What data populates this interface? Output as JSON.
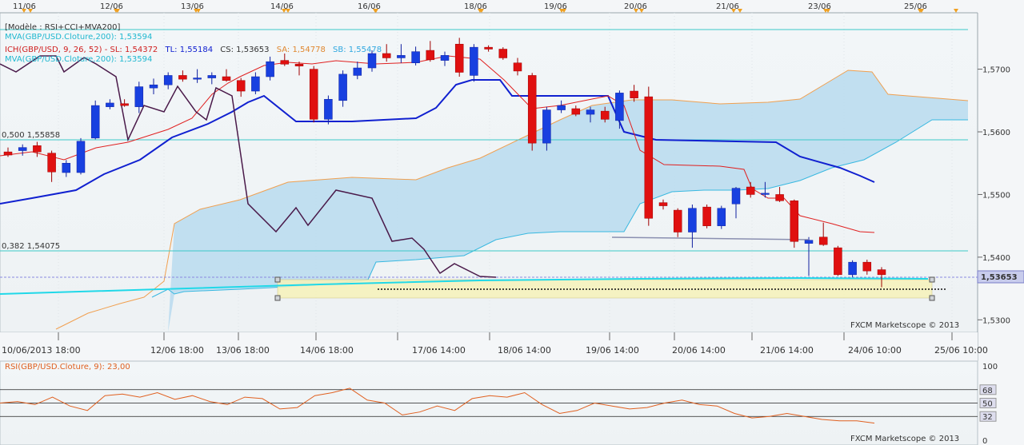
{
  "chart_data": {
    "type": "candlestick",
    "instrument": "GBP/USD",
    "title": "[Modèle : RSI+CCI+MVA200]",
    "watermark": "FXCM Marketscope © 2013",
    "indicators": {
      "mva200_top": "MVA(GBP/USD.Cloture,200): 1,53594",
      "ichimoku_prefix": "ICH(GBP/USD, 9, 26, 52) -  SL: 1,54372",
      "tl": "TL: 1,55184",
      "cs": "CS: 1,53653",
      "sa": "SA: 1,54778",
      "sb": "SB: 1,55478",
      "mva200_bottom": "MVA(GBP/USD.Cloture,200): 1,53594"
    },
    "fib_levels": [
      {
        "label": "0,500 1,55858",
        "value": 1.55858
      },
      {
        "label": "0,382 1,54075",
        "value": 1.54075
      }
    ],
    "current_price_label": "1,53653",
    "current_price": 1.53653,
    "top_axis_labels": [
      "11/06",
      "12/06",
      "13/06",
      "14/06",
      "16/06",
      "18/06",
      "19/06",
      "20/06",
      "21/06",
      "23/06",
      "25/06"
    ],
    "bottom_axis_labels": [
      "10/06/2013 18:00",
      "12/06 18:00",
      "13/06 18:00",
      "14/06 18:00",
      "17/06 14:00",
      "18/06 14:00",
      "19/06 14:00",
      "20/06 14:00",
      "21/06 14:00",
      "24/06 10:00",
      "25/06 10:00"
    ],
    "y_ticks": [
      "1,5300",
      "1,5400",
      "1,5500",
      "1,5600",
      "1,5700"
    ],
    "y_tick_values": [
      1.53,
      1.54,
      1.55,
      1.56,
      1.57
    ],
    "ylim": [
      1.528,
      1.579
    ],
    "rsi": {
      "label": "RSI(GBP/USD.Cloture, 9): 23,00",
      "levels": [
        "100",
        "68",
        "50",
        "32",
        "0"
      ],
      "values": [
        50,
        52,
        48,
        58,
        46,
        40,
        60,
        62,
        58,
        64,
        55,
        60,
        52,
        48,
        58,
        56,
        42,
        44,
        60,
        64,
        70,
        54,
        50,
        34,
        38,
        46,
        40,
        56,
        60,
        58,
        64,
        48,
        36,
        40,
        50,
        46,
        42,
        44,
        50,
        54,
        48,
        46,
        36,
        30,
        32,
        36,
        32,
        28,
        26,
        26,
        23
      ]
    },
    "candles": [
      {
        "o": 1.5568,
        "h": 1.5575,
        "l": 1.556,
        "c": 1.5563
      },
      {
        "o": 1.557,
        "h": 1.558,
        "l": 1.5562,
        "c": 1.5575
      },
      {
        "o": 1.5578,
        "h": 1.5584,
        "l": 1.556,
        "c": 1.5568
      },
      {
        "o": 1.5566,
        "h": 1.557,
        "l": 1.552,
        "c": 1.5536
      },
      {
        "o": 1.5535,
        "h": 1.5555,
        "l": 1.5528,
        "c": 1.555
      },
      {
        "o": 1.5535,
        "h": 1.559,
        "l": 1.5532,
        "c": 1.5585
      },
      {
        "o": 1.559,
        "h": 1.565,
        "l": 1.5588,
        "c": 1.5642
      },
      {
        "o": 1.564,
        "h": 1.5652,
        "l": 1.5636,
        "c": 1.5646
      },
      {
        "o": 1.5645,
        "h": 1.5652,
        "l": 1.564,
        "c": 1.5642
      },
      {
        "o": 1.564,
        "h": 1.568,
        "l": 1.563,
        "c": 1.5672
      },
      {
        "o": 1.567,
        "h": 1.5685,
        "l": 1.566,
        "c": 1.5675
      },
      {
        "o": 1.5675,
        "h": 1.5695,
        "l": 1.5668,
        "c": 1.569
      },
      {
        "o": 1.569,
        "h": 1.5698,
        "l": 1.568,
        "c": 1.5684
      },
      {
        "o": 1.5684,
        "h": 1.57,
        "l": 1.5678,
        "c": 1.5686
      },
      {
        "o": 1.5686,
        "h": 1.5695,
        "l": 1.5676,
        "c": 1.569
      },
      {
        "o": 1.5688,
        "h": 1.57,
        "l": 1.568,
        "c": 1.5682
      },
      {
        "o": 1.5682,
        "h": 1.5686,
        "l": 1.5656,
        "c": 1.5665
      },
      {
        "o": 1.5665,
        "h": 1.5695,
        "l": 1.566,
        "c": 1.5688
      },
      {
        "o": 1.5688,
        "h": 1.572,
        "l": 1.5682,
        "c": 1.5712
      },
      {
        "o": 1.5714,
        "h": 1.5725,
        "l": 1.5705,
        "c": 1.5708
      },
      {
        "o": 1.5708,
        "h": 1.5712,
        "l": 1.569,
        "c": 1.5705
      },
      {
        "o": 1.57,
        "h": 1.5705,
        "l": 1.5615,
        "c": 1.562
      },
      {
        "o": 1.562,
        "h": 1.5658,
        "l": 1.5612,
        "c": 1.5652
      },
      {
        "o": 1.565,
        "h": 1.5698,
        "l": 1.564,
        "c": 1.5692
      },
      {
        "o": 1.569,
        "h": 1.5712,
        "l": 1.5684,
        "c": 1.5702
      },
      {
        "o": 1.5702,
        "h": 1.573,
        "l": 1.5696,
        "c": 1.5725
      },
      {
        "o": 1.5725,
        "h": 1.574,
        "l": 1.5712,
        "c": 1.5718
      },
      {
        "o": 1.5718,
        "h": 1.574,
        "l": 1.571,
        "c": 1.5722
      },
      {
        "o": 1.571,
        "h": 1.5736,
        "l": 1.5706,
        "c": 1.5728
      },
      {
        "o": 1.573,
        "h": 1.5745,
        "l": 1.5712,
        "c": 1.5715
      },
      {
        "o": 1.5714,
        "h": 1.5728,
        "l": 1.5705,
        "c": 1.5722
      },
      {
        "o": 1.574,
        "h": 1.575,
        "l": 1.5688,
        "c": 1.5695
      },
      {
        "o": 1.569,
        "h": 1.574,
        "l": 1.568,
        "c": 1.5735
      },
      {
        "o": 1.5735,
        "h": 1.5738,
        "l": 1.5728,
        "c": 1.5732
      },
      {
        "o": 1.5732,
        "h": 1.5735,
        "l": 1.5715,
        "c": 1.5718
      },
      {
        "o": 1.571,
        "h": 1.5718,
        "l": 1.569,
        "c": 1.5697
      },
      {
        "o": 1.569,
        "h": 1.5694,
        "l": 1.557,
        "c": 1.5582
      },
      {
        "o": 1.5582,
        "h": 1.564,
        "l": 1.557,
        "c": 1.5635
      },
      {
        "o": 1.5635,
        "h": 1.565,
        "l": 1.563,
        "c": 1.5642
      },
      {
        "o": 1.5637,
        "h": 1.5642,
        "l": 1.5625,
        "c": 1.5628
      },
      {
        "o": 1.5628,
        "h": 1.564,
        "l": 1.5615,
        "c": 1.5635
      },
      {
        "o": 1.5633,
        "h": 1.564,
        "l": 1.5615,
        "c": 1.562
      },
      {
        "o": 1.5618,
        "h": 1.5666,
        "l": 1.5605,
        "c": 1.5662
      },
      {
        "o": 1.5665,
        "h": 1.5675,
        "l": 1.5648,
        "c": 1.5654
      },
      {
        "o": 1.5656,
        "h": 1.5672,
        "l": 1.545,
        "c": 1.5462
      },
      {
        "o": 1.5487,
        "h": 1.5492,
        "l": 1.5476,
        "c": 1.5482
      },
      {
        "o": 1.5475,
        "h": 1.5478,
        "l": 1.5432,
        "c": 1.544
      },
      {
        "o": 1.544,
        "h": 1.5484,
        "l": 1.5415,
        "c": 1.5478
      },
      {
        "o": 1.548,
        "h": 1.5484,
        "l": 1.5446,
        "c": 1.545
      },
      {
        "o": 1.545,
        "h": 1.5482,
        "l": 1.5445,
        "c": 1.5478
      },
      {
        "o": 1.5485,
        "h": 1.5512,
        "l": 1.5462,
        "c": 1.551
      },
      {
        "o": 1.5512,
        "h": 1.552,
        "l": 1.5495,
        "c": 1.55
      },
      {
        "o": 1.55,
        "h": 1.552,
        "l": 1.5495,
        "c": 1.5502
      },
      {
        "o": 1.55,
        "h": 1.5512,
        "l": 1.5488,
        "c": 1.549
      },
      {
        "o": 1.549,
        "h": 1.5492,
        "l": 1.5415,
        "c": 1.5425
      },
      {
        "o": 1.5422,
        "h": 1.5432,
        "l": 1.537,
        "c": 1.5427
      },
      {
        "o": 1.5432,
        "h": 1.5455,
        "l": 1.5418,
        "c": 1.542
      },
      {
        "o": 1.5415,
        "h": 1.5418,
        "l": 1.537,
        "c": 1.5372
      },
      {
        "o": 1.5372,
        "h": 1.5395,
        "l": 1.5368,
        "c": 1.5392
      },
      {
        "o": 1.5392,
        "h": 1.5396,
        "l": 1.5372,
        "c": 1.5378
      },
      {
        "o": 1.538,
        "h": 1.5384,
        "l": 1.5352,
        "c": 1.5372
      }
    ]
  }
}
